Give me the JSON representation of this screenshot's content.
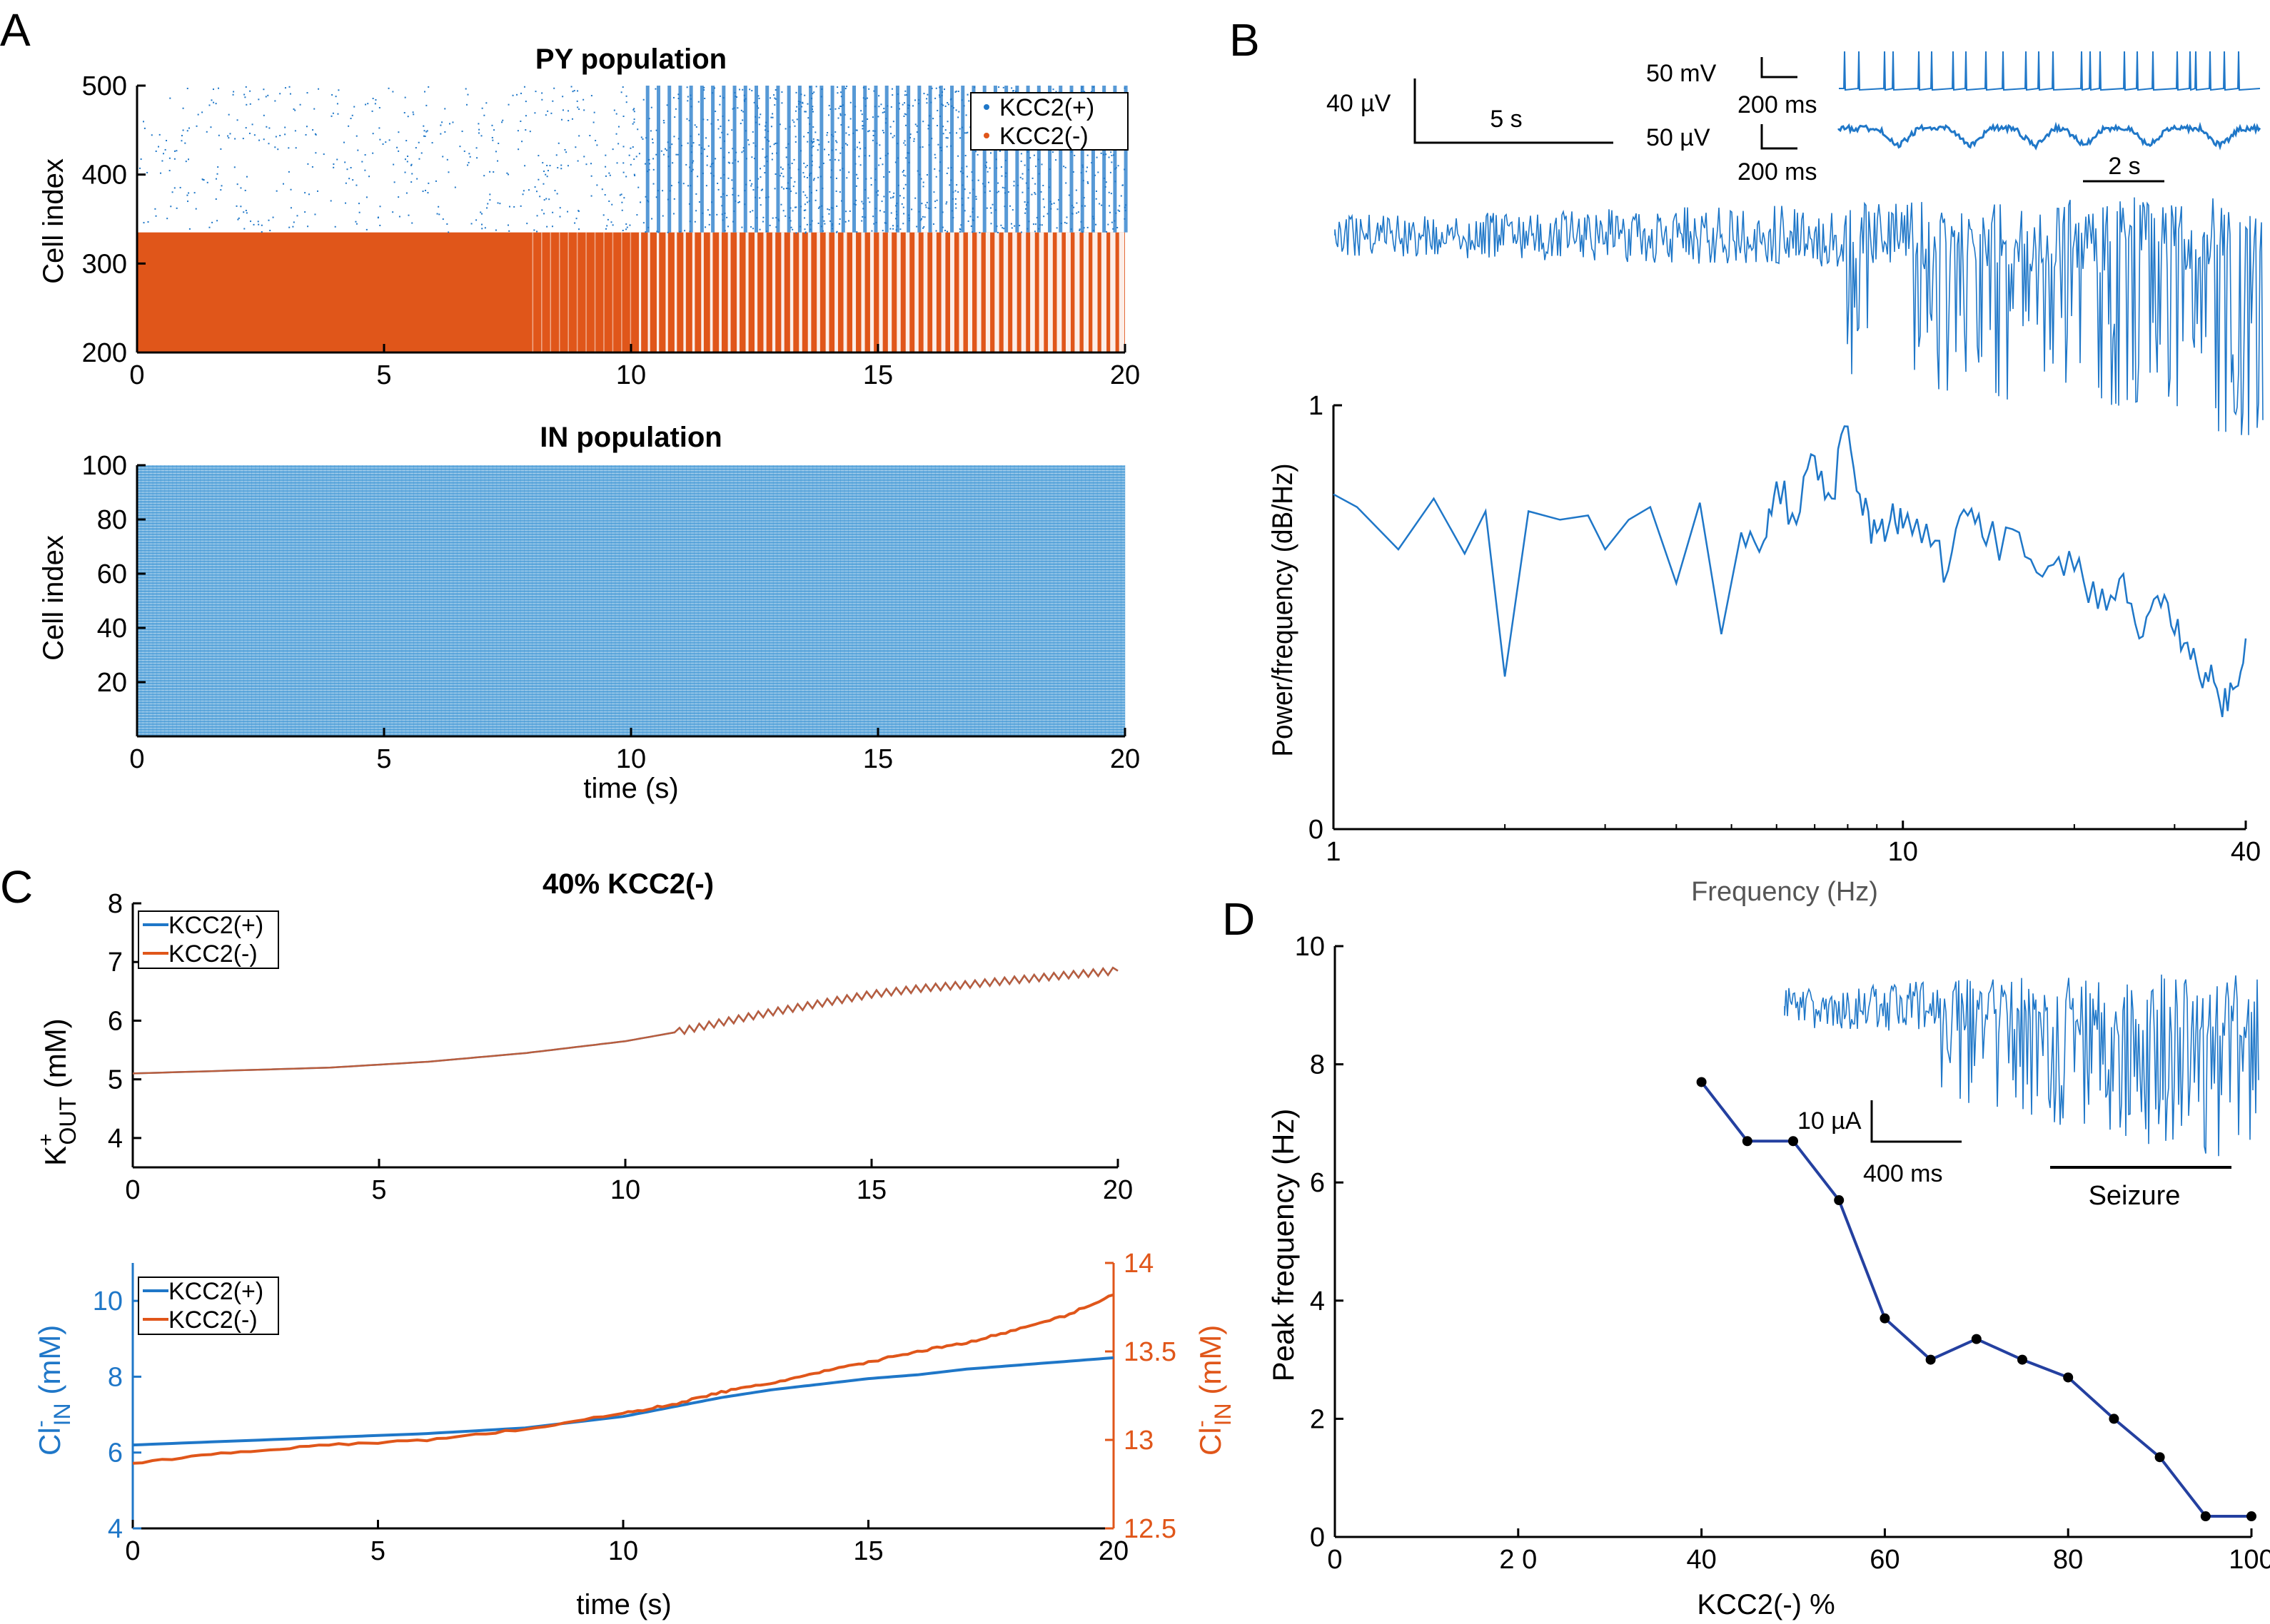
{
  "colors": {
    "blue": "#1f77c8",
    "lightblue": "#5fa8dc",
    "orange": "#e0561a",
    "navy": "#2440a0",
    "black": "#000000"
  },
  "chart_data": [
    {
      "panel": "A",
      "type": "scatter",
      "title": "PY population",
      "xlabel": "",
      "ylabel": "Cell index",
      "xlim": [
        0,
        20
      ],
      "ylim": [
        200,
        500
      ],
      "xticks": [
        "0",
        "5",
        "10",
        "15",
        "20"
      ],
      "yticks": [
        "200",
        "300",
        "400",
        "500"
      ],
      "legend": [
        "KCC2(+)",
        "KCC2(-)"
      ],
      "legend_position": "top-right",
      "series": [
        {
          "name": "KCC2(+)",
          "cell_index_range": [
            335,
            500
          ]
        },
        {
          "name": "KCC2(-)",
          "cell_index_range": [
            200,
            335
          ]
        }
      ]
    },
    {
      "panel": "A",
      "type": "scatter",
      "title": "IN population",
      "xlabel": "time (s)",
      "ylabel": "Cell index",
      "xlim": [
        0,
        20
      ],
      "ylim": [
        0,
        100
      ],
      "xticks": [
        "0",
        "5",
        "10",
        "15",
        "20"
      ],
      "yticks": [
        "20",
        "40",
        "60",
        "80",
        "100"
      ],
      "series": [
        {
          "cell_index_range": [
            1,
            100
          ]
        }
      ]
    },
    {
      "panel": "B",
      "type": "line",
      "title": "",
      "scale_bars": [
        "40 µV",
        "5 s",
        "50  mV",
        "200 ms",
        "50  µV",
        "200 ms",
        "2 s"
      ],
      "trace": "LFP"
    },
    {
      "panel": "B",
      "type": "line",
      "title": "",
      "xlabel": "Frequency (Hz)",
      "ylabel": "Power/frequency (dB/Hz)",
      "xscale": "log",
      "xlim": [
        1,
        40
      ],
      "ylim": [
        0,
        1
      ],
      "xticks": [
        "1",
        "10",
        "40"
      ],
      "yticks": [
        "0",
        "1"
      ],
      "x": [
        1,
        1.1,
        1.3,
        1.5,
        1.7,
        1.85,
        2.0,
        2.2,
        2.5,
        2.8,
        3.0,
        3.3,
        3.6,
        4.0,
        4.4,
        4.8,
        5.2,
        5.7,
        6.0,
        6.5,
        7.0,
        7.5,
        8.0,
        8.5,
        9.0,
        9.5,
        10,
        11,
        12,
        13,
        14,
        16,
        18,
        20,
        22,
        24,
        26,
        28,
        30,
        32,
        34,
        36,
        38,
        40
      ],
      "y": [
        0.79,
        0.76,
        0.66,
        0.78,
        0.65,
        0.75,
        0.36,
        0.75,
        0.73,
        0.74,
        0.66,
        0.73,
        0.76,
        0.58,
        0.77,
        0.46,
        0.7,
        0.68,
        0.82,
        0.72,
        0.88,
        0.78,
        0.95,
        0.74,
        0.7,
        0.73,
        0.71,
        0.72,
        0.61,
        0.74,
        0.67,
        0.7,
        0.62,
        0.61,
        0.52,
        0.59,
        0.45,
        0.55,
        0.46,
        0.4,
        0.37,
        0.3,
        0.33,
        0.45
      ]
    },
    {
      "panel": "C",
      "type": "line",
      "title": "40% KCC2(-)",
      "xlabel": "",
      "ylabel": "K+OUT (mM)",
      "xlim": [
        0,
        20
      ],
      "ylim": [
        3.5,
        8
      ],
      "xticks": [
        "0",
        "5",
        "10",
        "15",
        "20"
      ],
      "yticks": [
        "4",
        "5",
        "6",
        "7",
        "8"
      ],
      "legend": [
        "KCC2(+)",
        "KCC2(-)"
      ],
      "legend_position": "top-left",
      "x": [
        0,
        2,
        4,
        6,
        8,
        9,
        10,
        11,
        12,
        13,
        14,
        15,
        16,
        17,
        18,
        19,
        20
      ],
      "series": [
        {
          "name": "KCC2(+)",
          "values": [
            5.1,
            5.15,
            5.2,
            5.3,
            5.45,
            5.55,
            5.65,
            5.8,
            5.98,
            6.15,
            6.3,
            6.45,
            6.55,
            6.62,
            6.7,
            6.78,
            6.85
          ]
        },
        {
          "name": "KCC2(-)",
          "values": [
            5.1,
            5.15,
            5.2,
            5.3,
            5.45,
            5.55,
            5.65,
            5.8,
            5.98,
            6.15,
            6.3,
            6.45,
            6.55,
            6.62,
            6.7,
            6.78,
            6.85
          ]
        }
      ]
    },
    {
      "panel": "C",
      "type": "line",
      "title": "",
      "xlabel": "time (s)",
      "ylabel_left": "Cl-IN (mM)",
      "ylabel_right": "Cl-IN (mM)",
      "xlim": [
        0,
        20
      ],
      "ylim_left": [
        4,
        11
      ],
      "ylim_right": [
        12.5,
        14
      ],
      "xticks": [
        "0",
        "5",
        "10",
        "15",
        "20"
      ],
      "yticks_left": [
        "4",
        "6",
        "8",
        "10"
      ],
      "yticks_right": [
        "12.5",
        "13",
        "13.5",
        "14"
      ],
      "legend": [
        "KCC2(+)",
        "KCC2(-)"
      ],
      "legend_position": "top-left",
      "x": [
        0,
        2,
        4,
        6,
        8,
        10,
        11,
        12,
        13,
        14,
        15,
        16,
        17,
        18,
        19,
        20
      ],
      "series": [
        {
          "name": "KCC2(+)",
          "axis": "left",
          "values": [
            6.2,
            6.3,
            6.4,
            6.5,
            6.65,
            6.95,
            7.2,
            7.45,
            7.65,
            7.8,
            7.95,
            8.05,
            8.2,
            8.3,
            8.4,
            8.5
          ]
        },
        {
          "name": "KCC2(-)",
          "axis": "right",
          "values": [
            12.87,
            12.93,
            12.97,
            13.0,
            13.06,
            13.15,
            13.2,
            13.27,
            13.32,
            13.38,
            13.44,
            13.5,
            13.55,
            13.62,
            13.7,
            13.82
          ]
        }
      ]
    },
    {
      "panel": "D",
      "type": "line",
      "title": "",
      "xlabel": "KCC2(-) %",
      "ylabel": "Peak frequency (Hz)",
      "xlim": [
        0,
        100
      ],
      "ylim": [
        0,
        10
      ],
      "xticks": [
        "0",
        "2 0",
        "40",
        "60",
        "80",
        "100"
      ],
      "yticks": [
        "0",
        "2",
        "4",
        "6",
        "8",
        "10"
      ],
      "x": [
        40,
        45,
        50,
        55,
        60,
        65,
        70,
        75,
        80,
        85,
        90,
        95,
        100
      ],
      "values": [
        7.7,
        6.7,
        6.7,
        5.7,
        3.7,
        3.0,
        3.35,
        3.0,
        2.7,
        2.0,
        1.35,
        0.35,
        0.35
      ],
      "inset_scale": [
        "10 µA",
        "400 ms"
      ],
      "inset_label": "Seizure"
    }
  ],
  "labels": {
    "panel_a": "A",
    "panel_b": "B",
    "panel_c": "C",
    "panel_d": "D",
    "a_top_title": "PY population",
    "a_bottom_title": "IN population",
    "a_ylabel": "Cell index",
    "a_ylabel2": "Cell index",
    "a_xlabel": "time (s)",
    "legend_plus": "KCC2(+)",
    "legend_minus": "KCC2(-)",
    "b_40uv": "40",
    "b_40uv_unit": "µV",
    "b_5s": "5 s",
    "b_50mv": "50  mV",
    "b_200ms_1": "200 ms",
    "b_50uv": "50  µV",
    "b_200ms_2": "200 ms",
    "b_2s": "2 s",
    "b_ylabel": "Power/frequency (dB/Hz)",
    "b_xlabel": "Frequency (Hz)",
    "c_title": "40% KCC2(-)",
    "c_ylabel_k": "K",
    "c_ylabel_k_sup": "+",
    "c_ylabel_k_sub": "OUT",
    "c_ylabel_k_unit": " (mM)",
    "c_ylabel_cl": "Cl",
    "c_ylabel_cl_sup": "-",
    "c_ylabel_cl_sub": "IN",
    "c_ylabel_cl_unit": " (mM)",
    "c_xlabel": "time (s)",
    "d_ylabel": "Peak frequency (Hz)",
    "d_xlabel": "KCC2(-) %",
    "d_10ua": "10 µA",
    "d_400ms": "400 ms",
    "d_seizure": "Seizure"
  }
}
